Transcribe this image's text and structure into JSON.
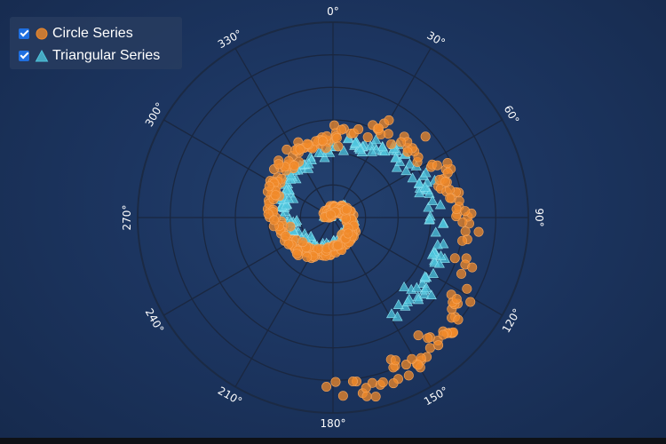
{
  "chart_data": {
    "type": "scatter",
    "coordinate_system": "polar",
    "angular_axis": {
      "ticks": [
        0,
        30,
        60,
        90,
        120,
        150,
        180,
        210,
        240,
        270,
        300,
        330
      ],
      "tick_labels": [
        "0°",
        "30°",
        "60°",
        "90°",
        "120°",
        "150°",
        "180°",
        "210°",
        "240°",
        "270°",
        "300°",
        "330°"
      ],
      "direction": "clockwise",
      "zero_at": "top"
    },
    "radial_axis": {
      "range": [
        0,
        1
      ],
      "rings": 6,
      "tick_labels_shown": false
    },
    "grid": true,
    "legend_position": "top-left",
    "series": [
      {
        "name": "Circle Series",
        "marker": "circle",
        "color": "#f08a2a",
        "spiral_model": "radius grows ~linearly with angle along 1.75 clockwise turns",
        "points": [
          {
            "angle": 270,
            "r": 0.02
          },
          {
            "angle": 0,
            "r": 0.04
          },
          {
            "angle": 90,
            "r": 0.08
          },
          {
            "angle": 180,
            "r": 0.16
          },
          {
            "angle": 270,
            "r": 0.3
          },
          {
            "angle": 330,
            "r": 0.38
          },
          {
            "angle": 0,
            "r": 0.42
          },
          {
            "angle": 30,
            "r": 0.5
          },
          {
            "angle": 60,
            "r": 0.58
          },
          {
            "angle": 90,
            "r": 0.66
          },
          {
            "angle": 120,
            "r": 0.76
          },
          {
            "angle": 150,
            "r": 0.86
          },
          {
            "angle": 180,
            "r": 0.92
          }
        ]
      },
      {
        "name": "Triangular Series",
        "marker": "triangle",
        "color": "#4fc4dc",
        "spiral_model": "radius grows ~linearly with angle along 1.5 clockwise turns",
        "points": [
          {
            "angle": 270,
            "r": 0.02
          },
          {
            "angle": 0,
            "r": 0.04
          },
          {
            "angle": 90,
            "r": 0.08
          },
          {
            "angle": 180,
            "r": 0.14
          },
          {
            "angle": 240,
            "r": 0.2
          },
          {
            "angle": 270,
            "r": 0.24
          },
          {
            "angle": 330,
            "r": 0.3
          },
          {
            "angle": 0,
            "r": 0.35
          },
          {
            "angle": 30,
            "r": 0.42
          },
          {
            "angle": 60,
            "r": 0.48
          },
          {
            "angle": 90,
            "r": 0.52
          },
          {
            "angle": 120,
            "r": 0.58
          },
          {
            "angle": 150,
            "r": 0.56
          }
        ]
      }
    ]
  },
  "legend": {
    "items": [
      {
        "label": "Circle Series",
        "checked": true
      },
      {
        "label": "Triangular Series",
        "checked": true
      }
    ]
  }
}
